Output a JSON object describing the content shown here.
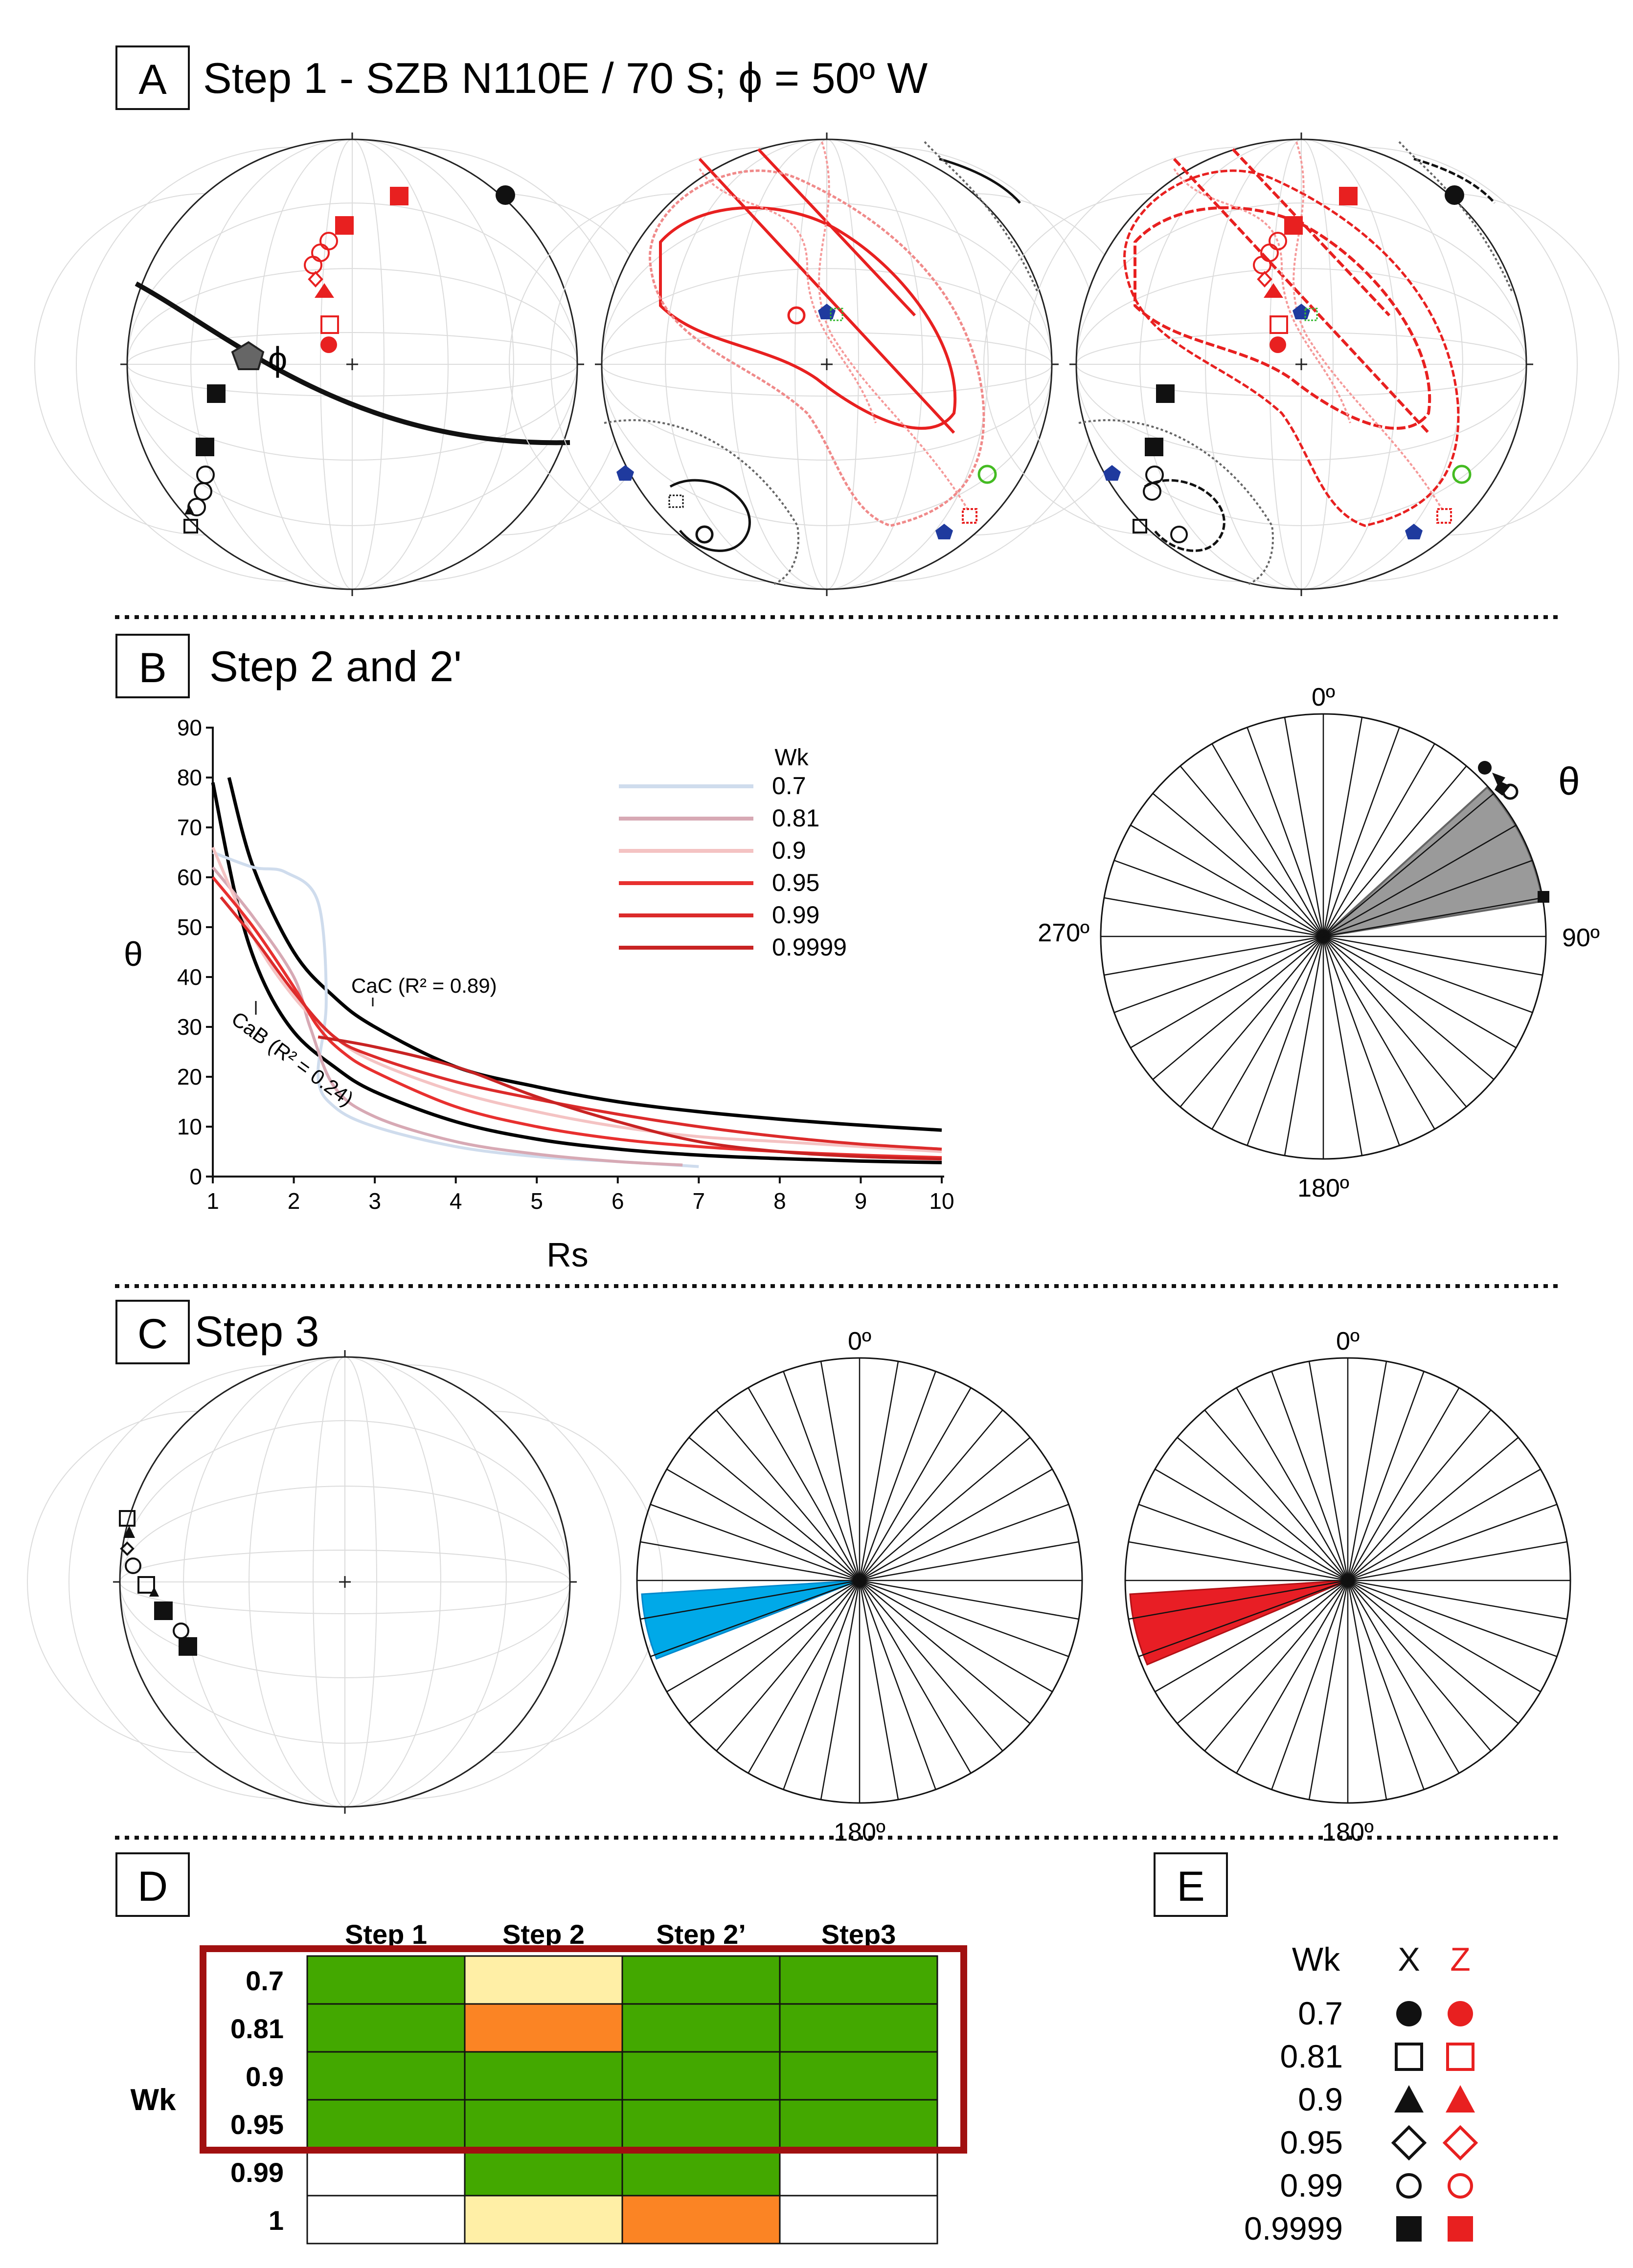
{
  "panels": {
    "A": {
      "letter": "A",
      "title": "Step 1 - SZB N110E / 70 S; ϕ = 50º W",
      "phi_label": "ϕ"
    },
    "B": {
      "letter": "B",
      "title": "Step 2 and 2'",
      "theta_label": "θ"
    },
    "C": {
      "letter": "C",
      "title": "Step 3"
    },
    "D": {
      "letter": "D"
    },
    "E": {
      "letter": "E"
    }
  },
  "rose_labels": {
    "n": "0º",
    "e": "90º",
    "s": "180º",
    "w": "270º"
  },
  "chart_data": {
    "type": "line",
    "xlabel": "Rs",
    "ylabel": "θ",
    "xlim": [
      1,
      10
    ],
    "ylim": [
      0,
      90
    ],
    "xticks": [
      1,
      2,
      3,
      4,
      5,
      6,
      7,
      8,
      9,
      10
    ],
    "yticks": [
      0,
      10,
      20,
      30,
      40,
      50,
      60,
      70,
      80,
      90
    ],
    "legend_title": "Wk",
    "legend": [
      {
        "label": "0.7",
        "color": "#cfdced"
      },
      {
        "label": "0.81",
        "color": "#d7a9b4"
      },
      {
        "label": "0.9",
        "color": "#f4c3c3"
      },
      {
        "label": "0.95",
        "color": "#e8302f"
      },
      {
        "label": "0.99",
        "color": "#dc2b2b"
      },
      {
        "label": "0.9999",
        "color": "#c82323"
      }
    ],
    "annotations": [
      {
        "text": "CaC (R² = 0.89)"
      },
      {
        "text": "CaB (R² = 0.24)"
      }
    ],
    "series": [
      {
        "name": "CaC",
        "color": "#000000",
        "x": [
          1.2,
          1.5,
          2,
          2.5,
          3,
          4,
          5,
          6,
          7,
          8,
          9,
          10
        ],
        "y": [
          80,
          62,
          45,
          36,
          30,
          22,
          18,
          15,
          13,
          11.5,
          10.3,
          9.3
        ]
      },
      {
        "name": "CaB",
        "color": "#000000",
        "x": [
          1,
          1.3,
          1.6,
          2,
          2.5,
          3,
          4,
          5,
          6,
          7,
          8,
          9,
          10
        ],
        "y": [
          79,
          55,
          40,
          29,
          22,
          17,
          11,
          7.5,
          5.5,
          4.3,
          3.6,
          3.1,
          2.8
        ]
      },
      {
        "name": "0.7",
        "color": "#cfdced",
        "x": [
          1,
          1.5,
          1.9,
          2.3,
          2.4,
          2.3,
          2.5,
          3,
          4,
          5,
          6,
          7
        ],
        "y": [
          65,
          62,
          61,
          55,
          35,
          20,
          14,
          10,
          6,
          4,
          3,
          2
        ]
      },
      {
        "name": "0.81",
        "color": "#d7a9b4",
        "x": [
          1,
          1.5,
          2,
          2.2,
          2.5,
          3,
          4,
          5,
          6,
          6.8
        ],
        "y": [
          62,
          52,
          40,
          30,
          18,
          12,
          7,
          4.5,
          3,
          2.3
        ]
      },
      {
        "name": "0.9",
        "color": "#f4c3c3",
        "x": [
          1,
          1.5,
          2,
          2.5,
          3,
          4,
          5,
          6,
          7,
          8,
          9,
          10
        ],
        "y": [
          66,
          48,
          36,
          28,
          23,
          17,
          13,
          10,
          8,
          7,
          6,
          5
        ]
      },
      {
        "name": "0.95",
        "color": "#e8302f",
        "x": [
          1,
          1.5,
          2,
          2.3,
          2.6,
          3,
          4,
          5,
          6,
          7,
          8,
          9,
          10
        ],
        "y": [
          60,
          50,
          38,
          30,
          25,
          21,
          14,
          10,
          7.5,
          6,
          5,
          4.3,
          3.8
        ]
      },
      {
        "name": "0.99",
        "color": "#dc2b2b",
        "x": [
          1.1,
          1.5,
          2,
          2.5,
          3,
          4,
          5,
          6,
          7,
          8,
          9,
          10
        ],
        "y": [
          56,
          48,
          37,
          28,
          24,
          19,
          15.5,
          12.5,
          10,
          8,
          6.5,
          5.5
        ]
      },
      {
        "name": "0.9999",
        "color": "#c82323",
        "x": [
          2.3,
          3,
          4,
          5,
          6,
          7,
          8,
          9,
          10
        ],
        "y": [
          28,
          26,
          22,
          16,
          11,
          7,
          5,
          4,
          3.5
        ]
      }
    ]
  },
  "table": {
    "row_header": "Wk",
    "columns": [
      "Step 1",
      "Step 2",
      "Step 2’",
      "Step3"
    ],
    "rows": [
      {
        "label": "0.7",
        "cells": [
          "green",
          "yellow",
          "green",
          "green"
        ]
      },
      {
        "label": "0.81",
        "cells": [
          "green",
          "orange",
          "green",
          "green"
        ]
      },
      {
        "label": "0.9",
        "cells": [
          "green",
          "green",
          "green",
          "green"
        ]
      },
      {
        "label": "0.95",
        "cells": [
          "green",
          "green",
          "green",
          "green"
        ]
      },
      {
        "label": "0.99",
        "cells": [
          "white",
          "green",
          "green",
          "white"
        ]
      },
      {
        "label": "1",
        "cells": [
          "white",
          "yellow",
          "orange",
          "white"
        ]
      }
    ],
    "colors": {
      "green": "#43a800",
      "yellow": "#ffefa6",
      "orange": "#fb8424",
      "white": "#ffffff",
      "highlight": "#a11010"
    }
  },
  "legend_e": {
    "title": "Wk",
    "x_label": "X",
    "z_label": "Z",
    "rows": [
      {
        "wk": "0.7",
        "symbol": "circle-filled"
      },
      {
        "wk": "0.81",
        "symbol": "square-open"
      },
      {
        "wk": "0.9",
        "symbol": "triangle-filled"
      },
      {
        "wk": "0.95",
        "symbol": "diamond-open"
      },
      {
        "wk": "0.99",
        "symbol": "circle-open"
      },
      {
        "wk": "0.9999",
        "symbol": "square-filled"
      }
    ],
    "x_color": "#111111",
    "z_color": "#e82020"
  }
}
